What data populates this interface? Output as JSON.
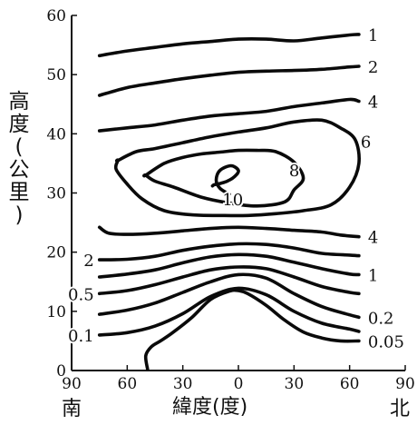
{
  "chart_data": {
    "type": "line",
    "title": "",
    "xlabel": "緯度(度)",
    "ylabel": [
      "高",
      "度",
      "(",
      "公",
      "里",
      ")"
    ],
    "south_label": "南",
    "north_label": "北",
    "xlim": [
      -90,
      90
    ],
    "ylim": [
      0,
      60
    ],
    "x_ticks": [
      -90,
      -60,
      -30,
      0,
      30,
      60,
      90
    ],
    "x_tick_labels": [
      "90",
      "60",
      "30",
      "0",
      "30",
      "60",
      "90"
    ],
    "y_ticks": [
      0,
      10,
      20,
      30,
      40,
      50,
      60
    ],
    "y_tick_labels": [
      "0",
      "10",
      "20",
      "30",
      "40",
      "50",
      "60"
    ],
    "grid": false,
    "series": [
      {
        "name": "1",
        "label": "1",
        "label_side": "right",
        "x": [
          -75,
          -60,
          -45,
          -30,
          -15,
          0,
          15,
          30,
          45,
          60,
          65
        ],
        "y": [
          53.2,
          54,
          54.6,
          55.2,
          55.6,
          56,
          56,
          55.7,
          56.2,
          56.7,
          56.8
        ]
      },
      {
        "name": "2",
        "label": "2",
        "label_side": "right",
        "x": [
          -75,
          -60,
          -45,
          -30,
          -15,
          0,
          15,
          30,
          45,
          60,
          65
        ],
        "y": [
          46.5,
          47.8,
          48.6,
          49.3,
          49.9,
          50.4,
          50.6,
          50.7,
          50.9,
          51.3,
          51.4
        ]
      },
      {
        "name": "4",
        "label": "4",
        "label_side": "right",
        "x": [
          -75,
          -60,
          -45,
          -30,
          -15,
          0,
          15,
          30,
          45,
          60,
          65
        ],
        "y": [
          40.5,
          41,
          41.5,
          42.3,
          43,
          43.4,
          43.8,
          44.6,
          45.2,
          45.8,
          45.5
        ]
      },
      {
        "name": "6",
        "label": "6",
        "label_side": "right",
        "x": [
          -65,
          -55,
          -45,
          -30,
          -15,
          0,
          15,
          30,
          45,
          55,
          63,
          65,
          60,
          50,
          35,
          20,
          5,
          -10,
          -25,
          -40,
          -52,
          -60,
          -66,
          -65
        ],
        "y": [
          35.5,
          37,
          37.5,
          38.5,
          39.5,
          40.3,
          41,
          42,
          42.3,
          41,
          39,
          35,
          31,
          28,
          27,
          26.5,
          26.2,
          26.2,
          26.3,
          27,
          29,
          31.5,
          34,
          35.5
        ],
        "closed": true
      },
      {
        "name": "8",
        "label": "8",
        "label_side": "inner",
        "x": [
          -50,
          -40,
          -30,
          -20,
          -10,
          0,
          10,
          20,
          30,
          35,
          30,
          25,
          10,
          -5,
          -20,
          -35,
          -45,
          -50
        ],
        "y": [
          33,
          35,
          36,
          36.6,
          36.9,
          37.2,
          37.2,
          37,
          35.2,
          32.5,
          30.5,
          28.5,
          27.8,
          28.3,
          29.3,
          31,
          32,
          33
        ],
        "closed": true
      },
      {
        "name": "10",
        "label": "10",
        "label_side": "inner",
        "x": [
          -5,
          -10,
          -12,
          -10,
          -4,
          0,
          -2,
          -6,
          -10,
          -13,
          -14
        ],
        "y": [
          29.8,
          30.8,
          32.2,
          33.8,
          34.6,
          33.8,
          32.8,
          32,
          31.6,
          31.4,
          31.2
        ]
      },
      {
        "name": "4 (lower)",
        "label": "4",
        "label_side": "right",
        "x": [
          -75,
          -70,
          -60,
          -45,
          -30,
          -15,
          0,
          15,
          30,
          45,
          55,
          65
        ],
        "y": [
          24.2,
          23.2,
          23,
          23.2,
          23.6,
          24,
          24.2,
          24,
          23.7,
          23.4,
          22.9,
          22.6
        ]
      },
      {
        "name": "2 (lower)",
        "label": "2",
        "label_side": "left",
        "x": [
          -75,
          -60,
          -45,
          -30,
          -15,
          0,
          15,
          30,
          45,
          60,
          65
        ],
        "y": [
          18.7,
          18.8,
          19.3,
          20.3,
          21,
          21.4,
          21.3,
          20.7,
          19.8,
          19.5,
          19.4
        ]
      },
      {
        "name": "1 (lower)",
        "label": "1",
        "label_side": "right",
        "x": [
          -75,
          -60,
          -45,
          -30,
          -15,
          0,
          15,
          30,
          45,
          60,
          65
        ],
        "y": [
          15.8,
          16.3,
          17,
          18.2,
          19.2,
          19.6,
          19.3,
          18.3,
          17.2,
          16.3,
          16.2
        ]
      },
      {
        "name": "0.5",
        "label": "0.5",
        "label_side": "left",
        "x": [
          -75,
          -60,
          -45,
          -30,
          -15,
          0,
          15,
          30,
          45,
          60,
          65
        ],
        "y": [
          13,
          13.5,
          14.5,
          15.8,
          17,
          17.5,
          17.2,
          15.8,
          14.2,
          13.2,
          13
        ]
      },
      {
        "name": "0.2",
        "label": "0.2",
        "label_side": "right",
        "x": [
          -75,
          -60,
          -45,
          -30,
          -15,
          0,
          15,
          30,
          45,
          60,
          65
        ],
        "y": [
          9.5,
          10.2,
          11.4,
          13.2,
          15,
          16.2,
          15.6,
          13,
          10.8,
          9.4,
          9
        ]
      },
      {
        "name": "0.1",
        "label": "0.1",
        "label_side": "left",
        "x": [
          -75,
          -60,
          -45,
          -30,
          -15,
          0,
          15,
          30,
          45,
          60,
          65
        ],
        "y": [
          6,
          6.4,
          7.5,
          9.6,
          12.5,
          13.9,
          12.8,
          10,
          8,
          7,
          6.6
        ]
      },
      {
        "name": "0.05",
        "label": "0.05",
        "label_side": "right",
        "x": [
          -49,
          -50,
          -47,
          -42,
          -35,
          -25,
          -15,
          -5,
          0,
          5,
          15,
          25,
          35,
          45,
          55,
          65
        ],
        "y": [
          0.2,
          2.5,
          4,
          5,
          6.5,
          9,
          12,
          13.4,
          13.5,
          13,
          11,
          8.5,
          6.5,
          5.5,
          5,
          5
        ]
      }
    ]
  }
}
